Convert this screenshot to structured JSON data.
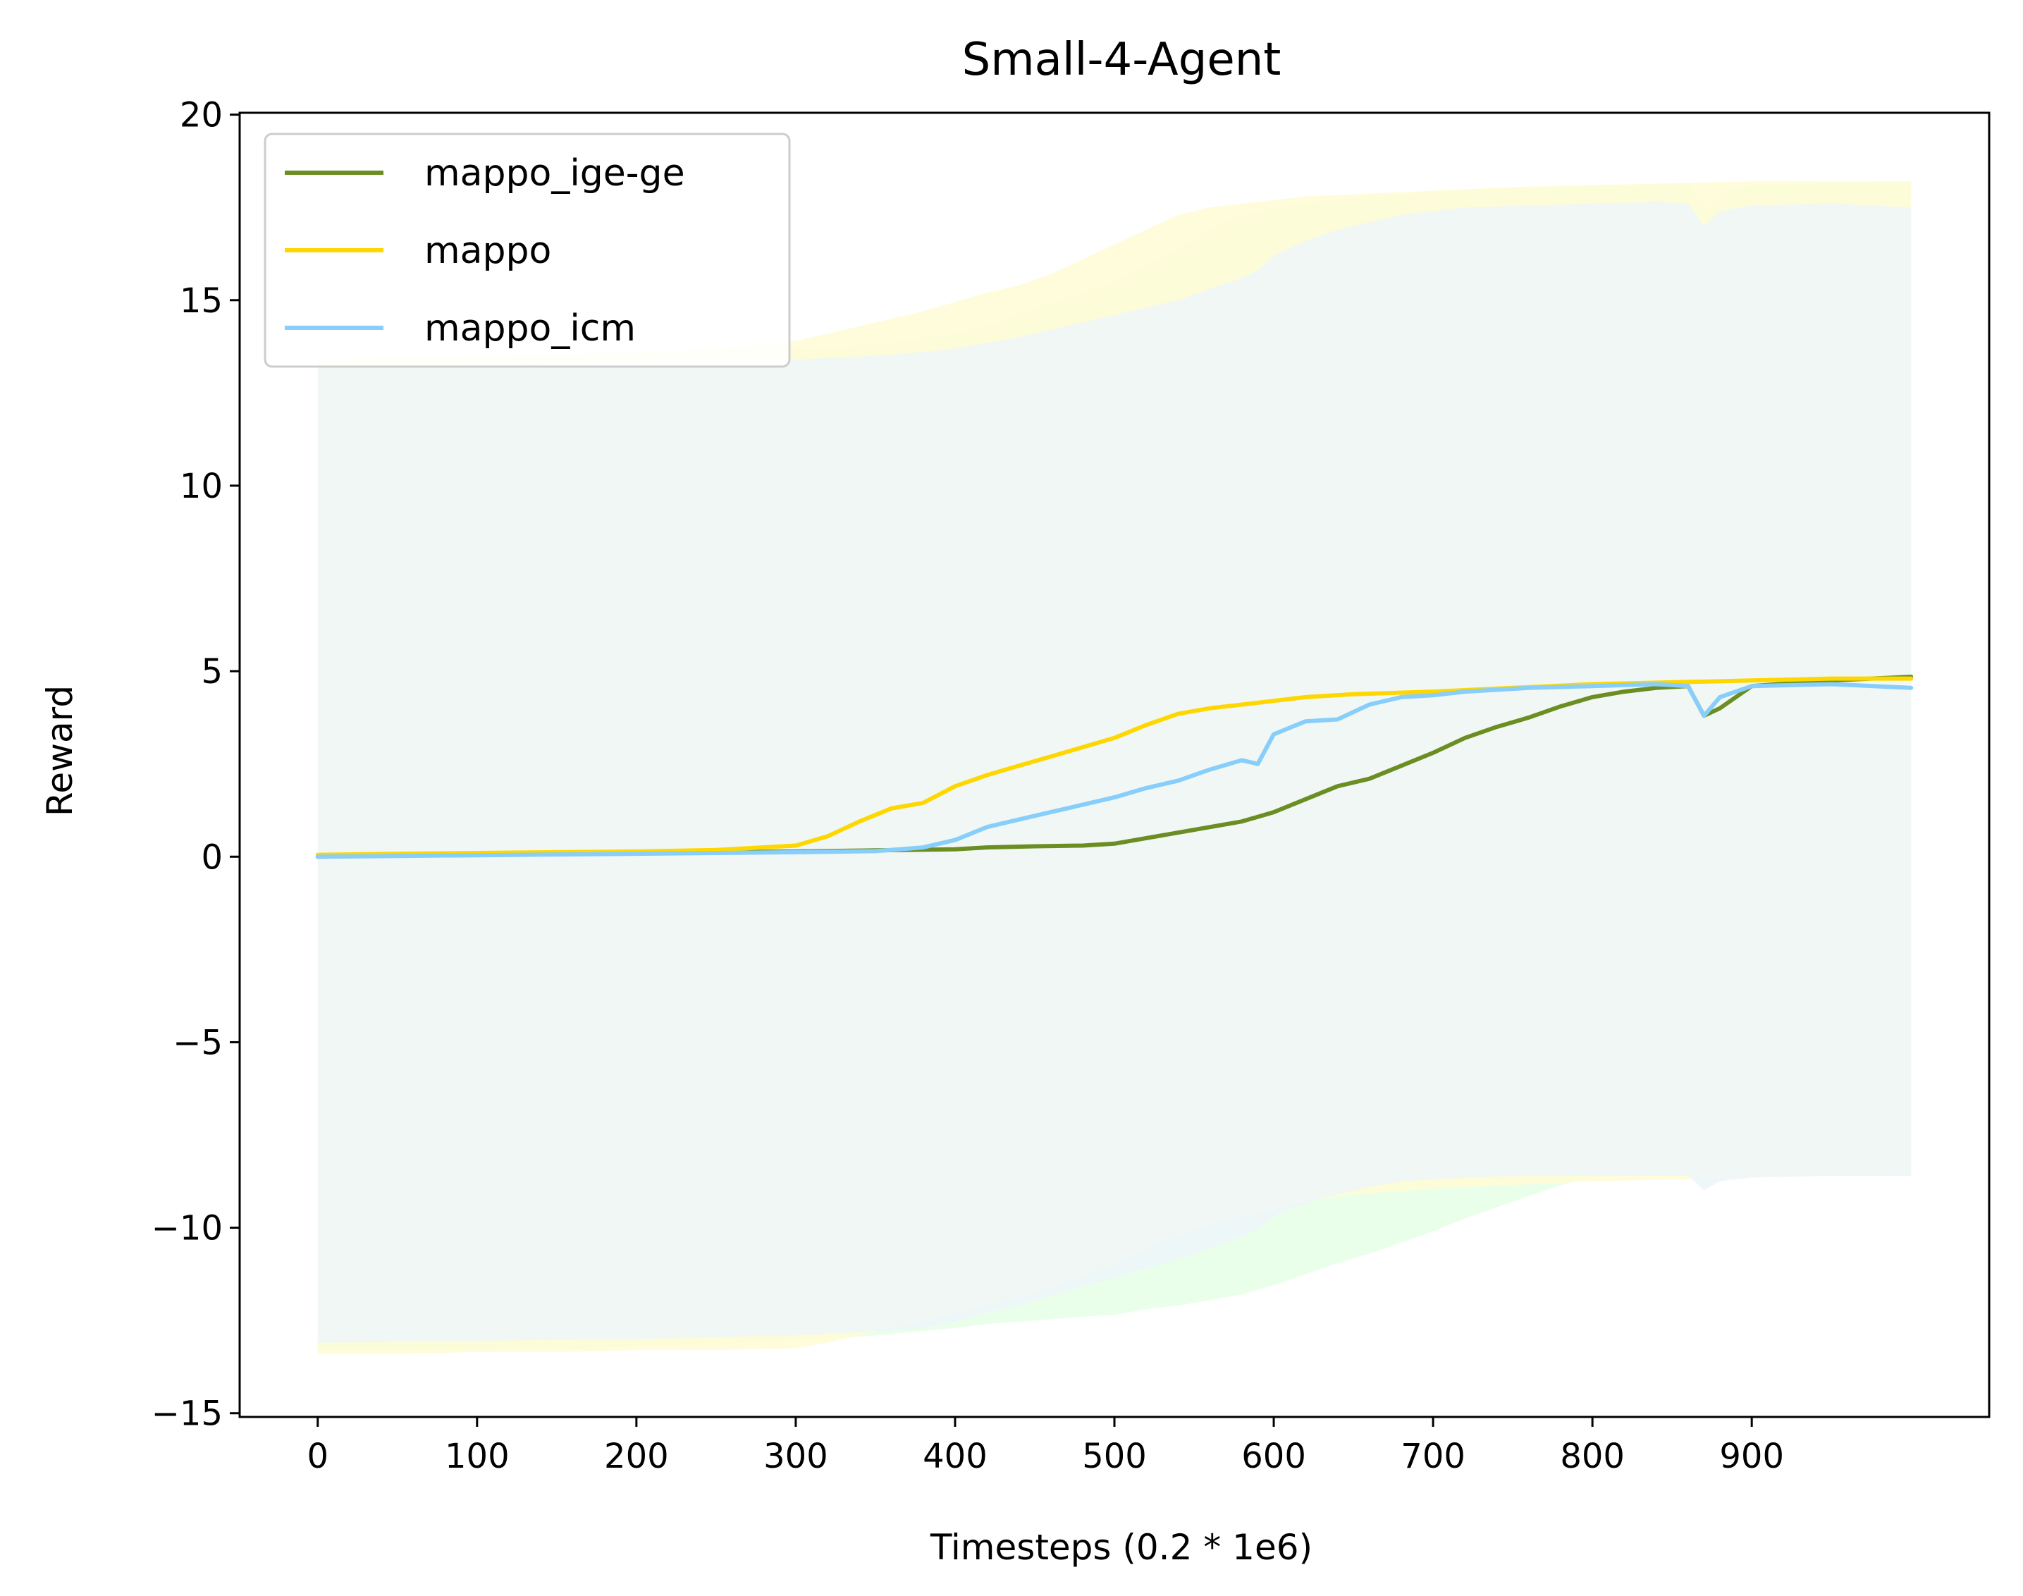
{
  "chart_data": {
    "type": "line",
    "title": "Small-4-Agent",
    "xlabel": "Timesteps (0.2 * 1e6)",
    "ylabel": "Reward",
    "xlim": [
      -49,
      1049
    ],
    "ylim": [
      -15.1,
      20.05
    ],
    "xticks": [
      0,
      100,
      200,
      300,
      400,
      500,
      600,
      700,
      800,
      900
    ],
    "xtick_labels": [
      "0",
      "100",
      "200",
      "300",
      "400",
      "500",
      "600",
      "700",
      "800",
      "900"
    ],
    "yticks": [
      -15,
      -10,
      -5,
      0,
      5,
      10,
      15,
      20
    ],
    "ytick_labels": [
      "−15",
      "−10",
      "−5",
      "0",
      "5",
      "10",
      "15",
      "20"
    ],
    "grid": false,
    "legend_position": "top-left",
    "series": [
      {
        "name": "mappo_ige-ge",
        "color": "#6b8e23",
        "band_color": "#e6ffe6",
        "x": [
          0,
          50,
          100,
          150,
          200,
          250,
          300,
          350,
          400,
          420,
          450,
          480,
          500,
          520,
          540,
          560,
          580,
          600,
          620,
          640,
          660,
          680,
          700,
          720,
          740,
          760,
          780,
          800,
          820,
          840,
          860,
          870,
          880,
          900,
          950,
          1000
        ],
        "values": [
          0.0,
          0.03,
          0.05,
          0.08,
          0.1,
          0.12,
          0.14,
          0.17,
          0.2,
          0.25,
          0.28,
          0.3,
          0.35,
          0.5,
          0.65,
          0.8,
          0.95,
          1.2,
          1.55,
          1.9,
          2.1,
          2.45,
          2.8,
          3.2,
          3.5,
          3.75,
          4.05,
          4.3,
          4.45,
          4.55,
          4.6,
          3.8,
          4.0,
          4.6,
          4.75,
          4.85
        ],
        "upper": [
          13.3,
          13.35,
          13.4,
          13.45,
          13.5,
          13.55,
          13.65,
          13.8,
          14.1,
          14.3,
          14.8,
          15.2,
          15.5,
          15.9,
          16.4,
          16.9,
          17.3,
          17.5,
          17.6,
          17.7,
          17.8,
          17.85,
          17.9,
          17.95,
          18.0,
          18.0,
          18.05,
          18.1,
          18.1,
          18.1,
          18.15,
          17.5,
          17.9,
          18.1,
          18.15,
          18.2
        ],
        "lower": [
          -13.3,
          -13.3,
          -13.3,
          -13.25,
          -13.2,
          -13.15,
          -13.05,
          -12.9,
          -12.7,
          -12.6,
          -12.5,
          -12.4,
          -12.35,
          -12.2,
          -12.1,
          -11.95,
          -11.8,
          -11.55,
          -11.25,
          -10.95,
          -10.7,
          -10.4,
          -10.1,
          -9.75,
          -9.45,
          -9.15,
          -8.85,
          -8.65,
          -8.55,
          -8.5,
          -8.45,
          -9.0,
          -8.7,
          -8.5,
          -8.45,
          -8.4
        ]
      },
      {
        "name": "mappo",
        "color": "#ffd700",
        "band_color": "#fffbd5",
        "x": [
          0,
          50,
          100,
          150,
          200,
          250,
          300,
          320,
          340,
          360,
          380,
          400,
          420,
          440,
          460,
          480,
          500,
          520,
          540,
          560,
          580,
          600,
          620,
          650,
          700,
          750,
          800,
          850,
          900,
          950,
          1000
        ],
        "values": [
          0.05,
          0.08,
          0.1,
          0.12,
          0.14,
          0.18,
          0.3,
          0.55,
          0.95,
          1.3,
          1.45,
          1.9,
          2.2,
          2.45,
          2.7,
          2.95,
          3.2,
          3.55,
          3.85,
          4.0,
          4.1,
          4.2,
          4.3,
          4.38,
          4.45,
          4.55,
          4.65,
          4.7,
          4.75,
          4.8,
          4.8
        ],
        "upper": [
          13.4,
          13.45,
          13.5,
          13.55,
          13.6,
          13.7,
          13.9,
          14.1,
          14.3,
          14.5,
          14.7,
          14.95,
          15.2,
          15.4,
          15.7,
          16.1,
          16.5,
          16.9,
          17.3,
          17.5,
          17.6,
          17.7,
          17.8,
          17.85,
          17.95,
          18.05,
          18.1,
          18.15,
          18.2,
          18.2,
          18.2
        ],
        "lower": [
          -13.4,
          -13.4,
          -13.35,
          -13.35,
          -13.3,
          -13.3,
          -13.25,
          -13.1,
          -12.9,
          -12.7,
          -12.5,
          -12.3,
          -12.1,
          -11.9,
          -11.6,
          -11.3,
          -11.0,
          -10.6,
          -10.2,
          -9.9,
          -9.7,
          -9.5,
          -9.3,
          -9.1,
          -8.95,
          -8.85,
          -8.75,
          -8.7,
          -8.65,
          -8.6,
          -8.6
        ]
      },
      {
        "name": "mappo_icm",
        "color": "#87cefa",
        "band_color": "#eef6fa",
        "x": [
          0,
          50,
          100,
          150,
          200,
          250,
          300,
          350,
          380,
          400,
          420,
          440,
          460,
          480,
          500,
          520,
          540,
          560,
          580,
          590,
          600,
          620,
          640,
          660,
          680,
          700,
          720,
          760,
          800,
          840,
          860,
          870,
          880,
          900,
          950,
          1000
        ],
        "values": [
          0.0,
          0.02,
          0.04,
          0.06,
          0.08,
          0.1,
          0.12,
          0.15,
          0.25,
          0.45,
          0.8,
          1.0,
          1.2,
          1.4,
          1.6,
          1.85,
          2.05,
          2.35,
          2.6,
          2.5,
          3.3,
          3.65,
          3.7,
          4.1,
          4.3,
          4.35,
          4.45,
          4.55,
          4.6,
          4.65,
          4.6,
          3.8,
          4.3,
          4.6,
          4.65,
          4.55
        ],
        "upper": [
          13.2,
          13.22,
          13.25,
          13.28,
          13.3,
          13.35,
          13.4,
          13.5,
          13.6,
          13.7,
          13.85,
          14.0,
          14.2,
          14.4,
          14.6,
          14.8,
          15.0,
          15.3,
          15.6,
          15.8,
          16.2,
          16.6,
          16.9,
          17.1,
          17.3,
          17.4,
          17.5,
          17.55,
          17.6,
          17.65,
          17.6,
          17.0,
          17.4,
          17.55,
          17.6,
          17.5
        ],
        "lower": [
          -13.1,
          -13.08,
          -13.05,
          -13.02,
          -13.0,
          -12.95,
          -12.9,
          -12.8,
          -12.7,
          -12.55,
          -12.3,
          -12.1,
          -11.85,
          -11.6,
          -11.35,
          -11.1,
          -10.85,
          -10.55,
          -10.25,
          -10.05,
          -9.7,
          -9.35,
          -9.1,
          -8.9,
          -8.75,
          -8.7,
          -8.65,
          -8.6,
          -8.6,
          -8.6,
          -8.6,
          -9.0,
          -8.75,
          -8.65,
          -8.6,
          -8.6
        ]
      }
    ]
  }
}
